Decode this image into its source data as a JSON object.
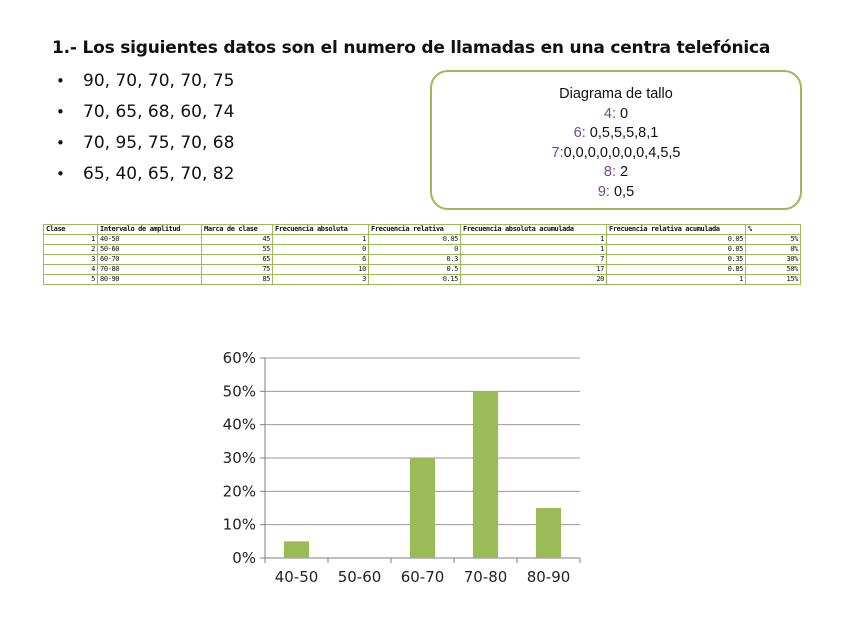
{
  "heading": "1.- Los siguientes datos son el numero de llamadas en una centra telefónica",
  "data_rows": [
    "90, 70, 70, 70, 75",
    "70, 65, 68, 60, 74",
    "70, 95, 75, 70, 68",
    "65, 40, 65, 70, 82"
  ],
  "stem_diagram": {
    "title": "Diagrama de tallo",
    "rows": [
      {
        "stem": "4:",
        "leaves": " 0"
      },
      {
        "stem": "6:",
        "leaves": " 0,5,5,5,8,1"
      },
      {
        "stem": "7:",
        "leaves": "0,0,0,0,0,0,0,4,5,5"
      },
      {
        "stem": "8:",
        "leaves": " 2"
      },
      {
        "stem": "9:",
        "leaves": " 0,5"
      }
    ],
    "accent_color": "#7f3f98"
  },
  "table": {
    "headers": [
      "Clase",
      "Intervalo de amplitud",
      "Marca de clase",
      "Frecuencia absoluta",
      "Frecuencia relativa",
      "Frecuencia absoluta acumulada",
      "Frecuencia relativa acumulada",
      "%"
    ],
    "rows": [
      [
        "1",
        "40-50",
        "45",
        "1",
        "0.05",
        "1",
        "0.05",
        "5%"
      ],
      [
        "2",
        "50-60",
        "55",
        "0",
        "0",
        "1",
        "0.05",
        "0%"
      ],
      [
        "3",
        "60-70",
        "65",
        "6",
        "0.3",
        "7",
        "0.35",
        "30%"
      ],
      [
        "4",
        "70-80",
        "75",
        "10",
        "0.5",
        "17",
        "0.85",
        "50%"
      ],
      [
        "5",
        "80-90",
        "85",
        "3",
        "0.15",
        "20",
        "1",
        "15%"
      ]
    ]
  },
  "chart_data": {
    "type": "bar",
    "title": "",
    "xlabel": "",
    "ylabel": "",
    "categories": [
      "40-50",
      "50-60",
      "60-70",
      "70-80",
      "80-90"
    ],
    "values": [
      5,
      0,
      30,
      50,
      15
    ],
    "ylim": [
      0,
      60
    ],
    "yticks": [
      "0%",
      "10%",
      "20%",
      "30%",
      "40%",
      "50%",
      "60%"
    ],
    "grid": true,
    "legend": "none",
    "bar_color": "#9bbb59"
  },
  "colors": {
    "accent_green": "#9bbb59"
  }
}
